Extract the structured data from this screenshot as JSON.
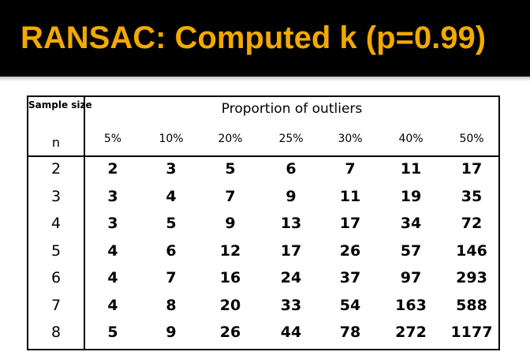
{
  "slide": {
    "title": "RANSAC: Computed k (p=0.99)"
  },
  "colors": {
    "title_bg": "#000000",
    "title_text": "#f2a900",
    "table_border": "#000000"
  },
  "table": {
    "sample_size_label": "Sample size",
    "n_label": "n",
    "proportion_header": "Proportion of outliers",
    "columns": [
      "5%",
      "10%",
      "20%",
      "25%",
      "30%",
      "40%",
      "50%"
    ],
    "rows": [
      {
        "n": "2",
        "values": [
          "2",
          "3",
          "5",
          "6",
          "7",
          "11",
          "17"
        ]
      },
      {
        "n": "3",
        "values": [
          "3",
          "4",
          "7",
          "9",
          "11",
          "19",
          "35"
        ]
      },
      {
        "n": "4",
        "values": [
          "3",
          "5",
          "9",
          "13",
          "17",
          "34",
          "72"
        ]
      },
      {
        "n": "5",
        "values": [
          "4",
          "6",
          "12",
          "17",
          "26",
          "57",
          "146"
        ]
      },
      {
        "n": "6",
        "values": [
          "4",
          "7",
          "16",
          "24",
          "37",
          "97",
          "293"
        ]
      },
      {
        "n": "7",
        "values": [
          "4",
          "8",
          "20",
          "33",
          "54",
          "163",
          "588"
        ]
      },
      {
        "n": "8",
        "values": [
          "5",
          "9",
          "26",
          "44",
          "78",
          "272",
          "1177"
        ]
      }
    ]
  }
}
